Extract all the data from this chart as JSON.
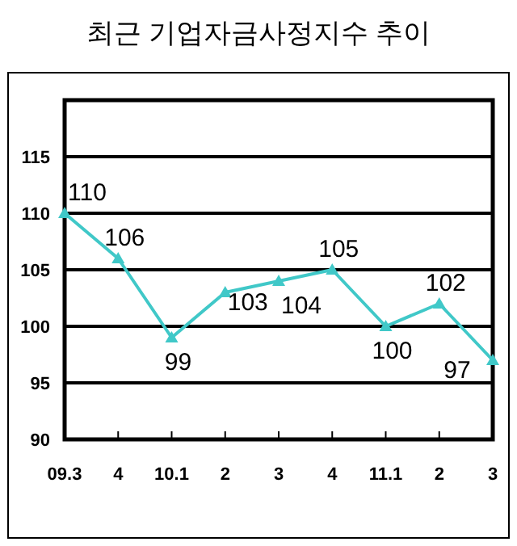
{
  "chart_data": {
    "type": "line",
    "title": "최근 기업자금사정지수 추이",
    "categories": [
      "09.3",
      "4",
      "10.1",
      "2",
      "3",
      "4",
      "11.1",
      "2",
      "3"
    ],
    "values": [
      110,
      106,
      99,
      103,
      104,
      105,
      100,
      102,
      97
    ],
    "color": "#40c8c8",
    "marker": "triangle",
    "data_labels": true,
    "grid": "y",
    "ylim": [
      90,
      120
    ],
    "yticks": [
      90,
      95,
      100,
      105,
      110,
      115
    ]
  }
}
